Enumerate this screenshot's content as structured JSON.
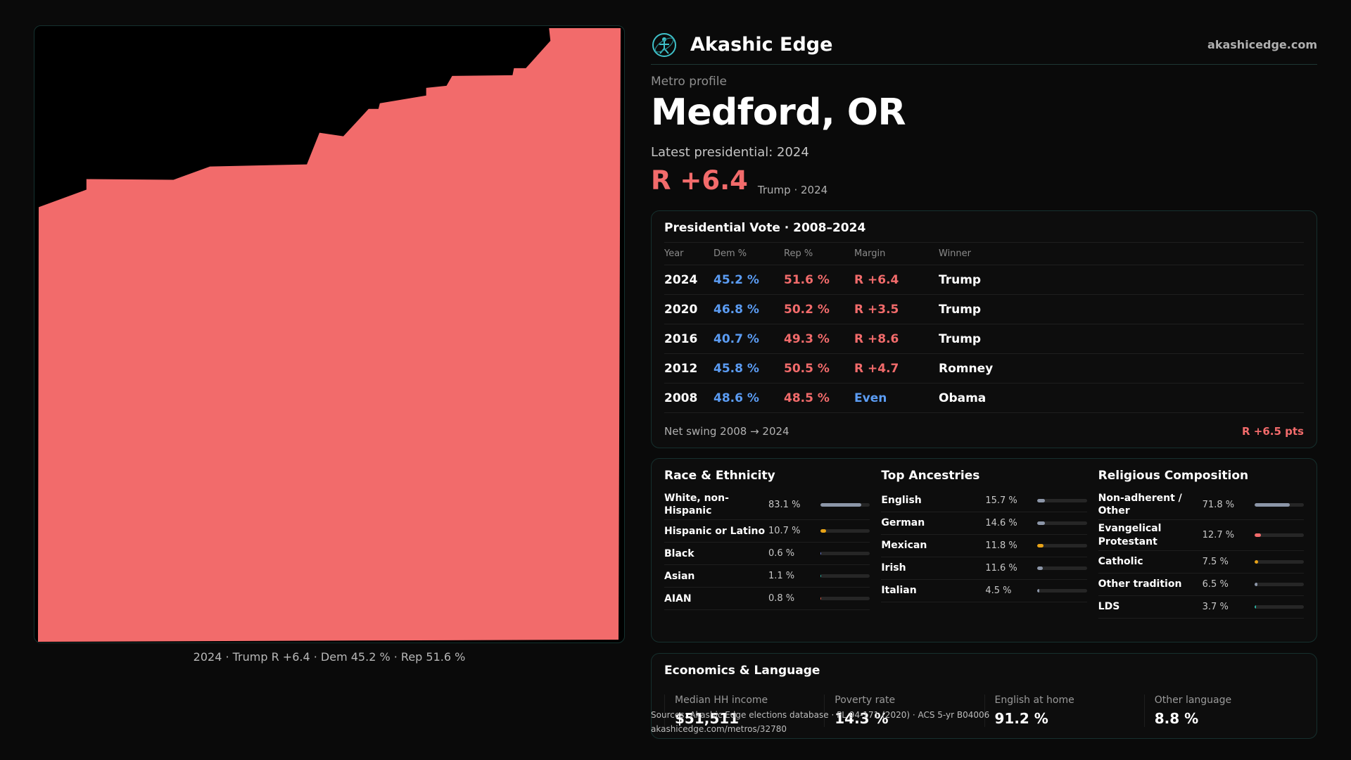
{
  "map": {
    "caption": "2024 · Trump R +6.4 · Dem 45.2 % · Rep 51.6 %",
    "fill_color": "#f26b6b"
  },
  "header": {
    "brand": "Akashic Edge",
    "site": "akashicedge.com",
    "logo_icon": "atom-figure-icon"
  },
  "profile": {
    "eyebrow": "Metro profile",
    "title": "Medford, OR",
    "latest_label": "Latest presidential: 2024",
    "headline_margin": "R +6.4",
    "headline_sub": "Trump · 2024"
  },
  "vote_table": {
    "title": "Presidential Vote · 2008–2024",
    "columns": [
      "Year",
      "Dem %",
      "Rep %",
      "Margin",
      "Winner"
    ],
    "rows": [
      {
        "year": "2024",
        "dem": "45.2 %",
        "rep": "51.6 %",
        "margin": "R +6.4",
        "margin_party": "rep",
        "winner": "Trump"
      },
      {
        "year": "2020",
        "dem": "46.8 %",
        "rep": "50.2 %",
        "margin": "R +3.5",
        "margin_party": "rep",
        "winner": "Trump"
      },
      {
        "year": "2016",
        "dem": "40.7 %",
        "rep": "49.3 %",
        "margin": "R +8.6",
        "margin_party": "rep",
        "winner": "Trump"
      },
      {
        "year": "2012",
        "dem": "45.8 %",
        "rep": "50.5 %",
        "margin": "R +4.7",
        "margin_party": "rep",
        "winner": "Romney"
      },
      {
        "year": "2008",
        "dem": "48.6 %",
        "rep": "48.5 %",
        "margin": "Even",
        "margin_party": "dem",
        "winner": "Obama"
      }
    ],
    "net_swing_label": "Net swing 2008 → 2024",
    "net_swing_value": "R +6.5 pts"
  },
  "demographics": [
    {
      "title": "Race & Ethnicity",
      "rows": [
        {
          "label": "White, non-Hispanic",
          "pct": "83.1 %",
          "value": 83.1,
          "color": "#8c96a8"
        },
        {
          "label": "Hispanic or Latino",
          "pct": "10.7 %",
          "value": 10.7,
          "color": "#e8a317"
        },
        {
          "label": "Black",
          "pct": "0.6 %",
          "value": 0.6,
          "color": "#6c7fd8"
        },
        {
          "label": "Asian",
          "pct": "1.1 %",
          "value": 1.1,
          "color": "#2bb3a3"
        },
        {
          "label": "AIAN",
          "pct": "0.8 %",
          "value": 0.8,
          "color": "#e0614b"
        }
      ]
    },
    {
      "title": "Top Ancestries",
      "rows": [
        {
          "label": "English",
          "pct": "15.7 %",
          "value": 15.7,
          "color": "#8c96a8"
        },
        {
          "label": "German",
          "pct": "14.6 %",
          "value": 14.6,
          "color": "#8c96a8"
        },
        {
          "label": "Mexican",
          "pct": "11.8 %",
          "value": 11.8,
          "color": "#e8a317"
        },
        {
          "label": "Irish",
          "pct": "11.6 %",
          "value": 11.6,
          "color": "#8c96a8"
        },
        {
          "label": "Italian",
          "pct": "4.5 %",
          "value": 4.5,
          "color": "#8c96a8"
        }
      ]
    },
    {
      "title": "Religious Composition",
      "rows": [
        {
          "label": "Non-adherent / Other",
          "pct": "71.8 %",
          "value": 71.8,
          "color": "#8c96a8"
        },
        {
          "label": "Evangelical Protestant",
          "pct": "12.7 %",
          "value": 12.7,
          "color": "#f26b6b"
        },
        {
          "label": "Catholic",
          "pct": "7.5 %",
          "value": 7.5,
          "color": "#e8a317"
        },
        {
          "label": "Other tradition",
          "pct": "6.5 %",
          "value": 6.5,
          "color": "#8c96a8"
        },
        {
          "label": "LDS",
          "pct": "3.7 %",
          "value": 3.7,
          "color": "#2bb3a3"
        }
      ]
    }
  ],
  "economics": {
    "title": "Economics & Language",
    "items": [
      {
        "label": "Median HH income",
        "value": "$51,511"
      },
      {
        "label": "Poverty rate",
        "value": "14.3 %"
      },
      {
        "label": "English at home",
        "value": "91.2 %"
      },
      {
        "label": "Other language",
        "value": "8.8 %"
      }
    ]
  },
  "sources": {
    "line1": "Sources: Akashic Edge elections database · PL 94-171 (2020) · ACS 5-yr B04006",
    "line2": "akashicedge.com/metros/32780"
  }
}
